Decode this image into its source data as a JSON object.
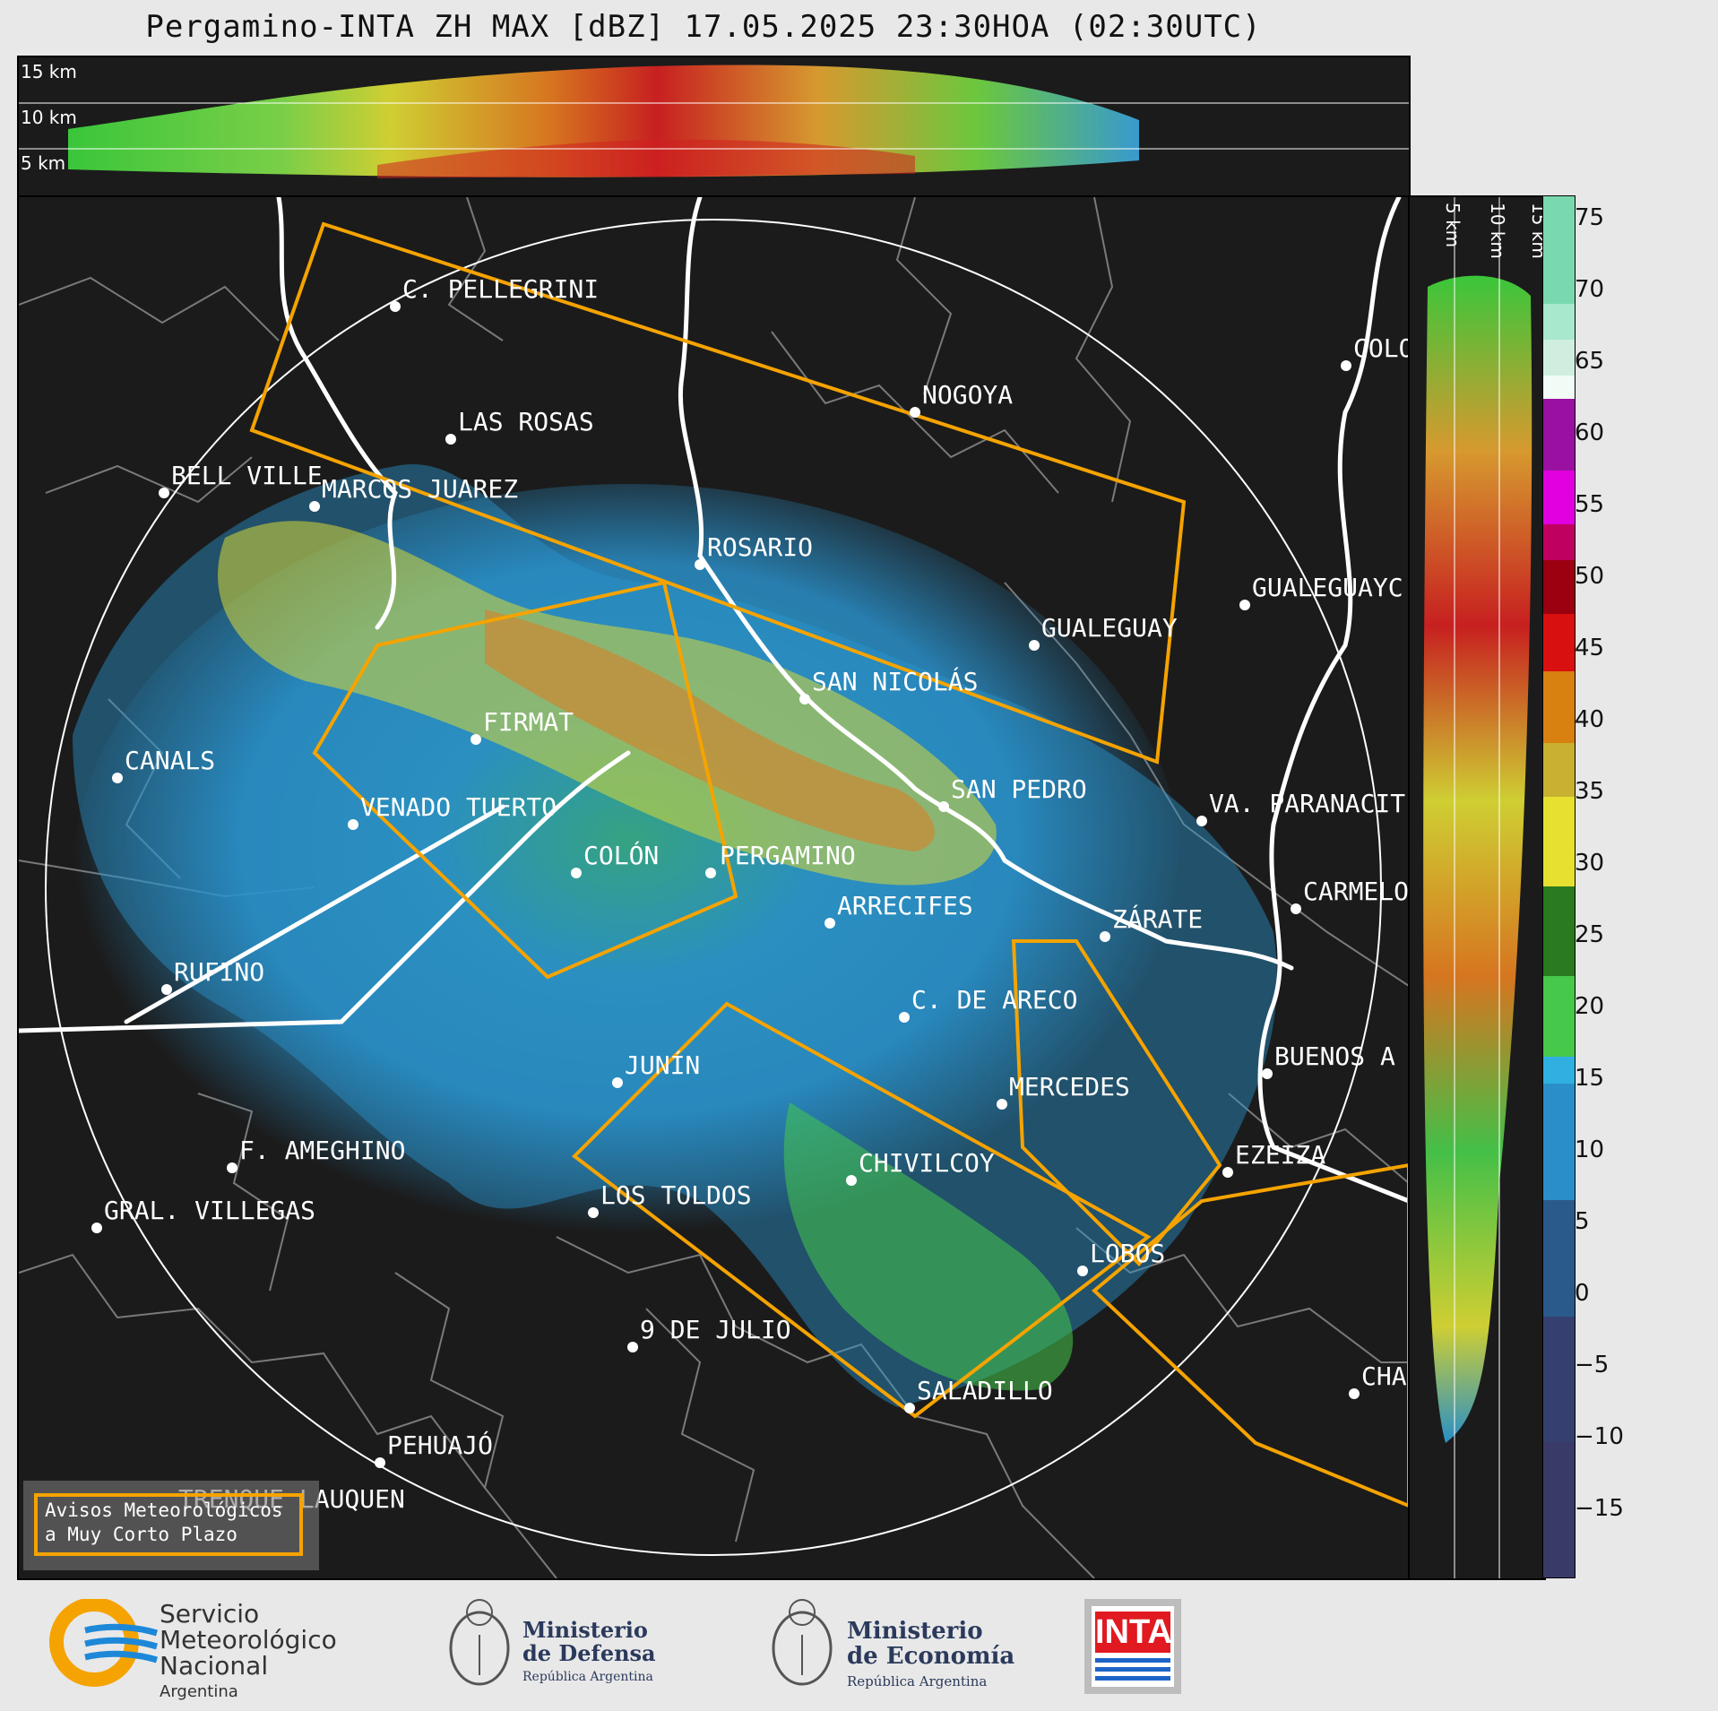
{
  "title": "Pergamino-INTA ZH MAX [dBZ] 17.05.2025 23:30HOA (02:30UTC)",
  "top_panel": {
    "altitude_labels": [
      "15 km",
      "10 km",
      "5 km"
    ]
  },
  "side_panel": {
    "altitude_labels": [
      "5 km",
      "10 km",
      "15 km"
    ]
  },
  "colorbar": {
    "unit": "dBZ",
    "ticks": [
      "75",
      "70",
      "65",
      "60",
      "55",
      "50",
      "45",
      "40",
      "35",
      "30",
      "25",
      "20",
      "15",
      "10",
      "5",
      "0",
      "−5",
      "−10",
      "−15"
    ],
    "range": [
      -20,
      77
    ]
  },
  "cities": [
    {
      "name": "C. PELLEGRINI"
    },
    {
      "name": "NOGOYA"
    },
    {
      "name": "LAS ROSAS"
    },
    {
      "name": "BELL VILLE"
    },
    {
      "name": "MARCOS JUAREZ"
    },
    {
      "name": "ROSARIO"
    },
    {
      "name": "GUALEGUAYC"
    },
    {
      "name": "GUALEGUAY"
    },
    {
      "name": "SAN NICOLÁS"
    },
    {
      "name": "FIRMAT"
    },
    {
      "name": "CANALS"
    },
    {
      "name": "SAN PEDRO"
    },
    {
      "name": "VENADO TUERTO"
    },
    {
      "name": "VA. PARANACIT"
    },
    {
      "name": "COLÓN"
    },
    {
      "name": "PERGAMINO"
    },
    {
      "name": "CARMELO"
    },
    {
      "name": "ARRECIFES"
    },
    {
      "name": "ZÁRATE"
    },
    {
      "name": "RUFINO"
    },
    {
      "name": "C. DE ARECO"
    },
    {
      "name": "JUNÍN"
    },
    {
      "name": "BUENOS A"
    },
    {
      "name": "MERCEDES"
    },
    {
      "name": "F. AMEGHINO"
    },
    {
      "name": "EZEIZA"
    },
    {
      "name": "CHIVILCOY"
    },
    {
      "name": "GRAL. VILLEGAS"
    },
    {
      "name": "LOS TOLDOS"
    },
    {
      "name": "LOBOS"
    },
    {
      "name": "9 DE JULIO"
    },
    {
      "name": "SALADILLO"
    },
    {
      "name": "CHA"
    },
    {
      "name": "PEHUAJÓ"
    },
    {
      "name": "TRENQUE LAUQUEN"
    },
    {
      "name": "COLO"
    }
  ],
  "legend": {
    "line1": "Avisos Meteorológicos",
    "line2": "a Muy Corto Plazo"
  },
  "logos": {
    "smn_line1": "Servicio",
    "smn_line2": "Meteorológico",
    "smn_line3": "Nacional",
    "smn_line4": "Argentina",
    "defensa_line1": "Ministerio",
    "defensa_line2": "de Defensa",
    "defensa_line3": "República Argentina",
    "economia_line1": "Ministerio",
    "economia_line2": "de Economía",
    "economia_line3": "República Argentina",
    "inta": "INTA"
  },
  "colors": {
    "background": "#1b1b1b",
    "warning_polygon": "#f5a300",
    "rivers": "#ffffff",
    "borders": "#7a7a7a"
  }
}
